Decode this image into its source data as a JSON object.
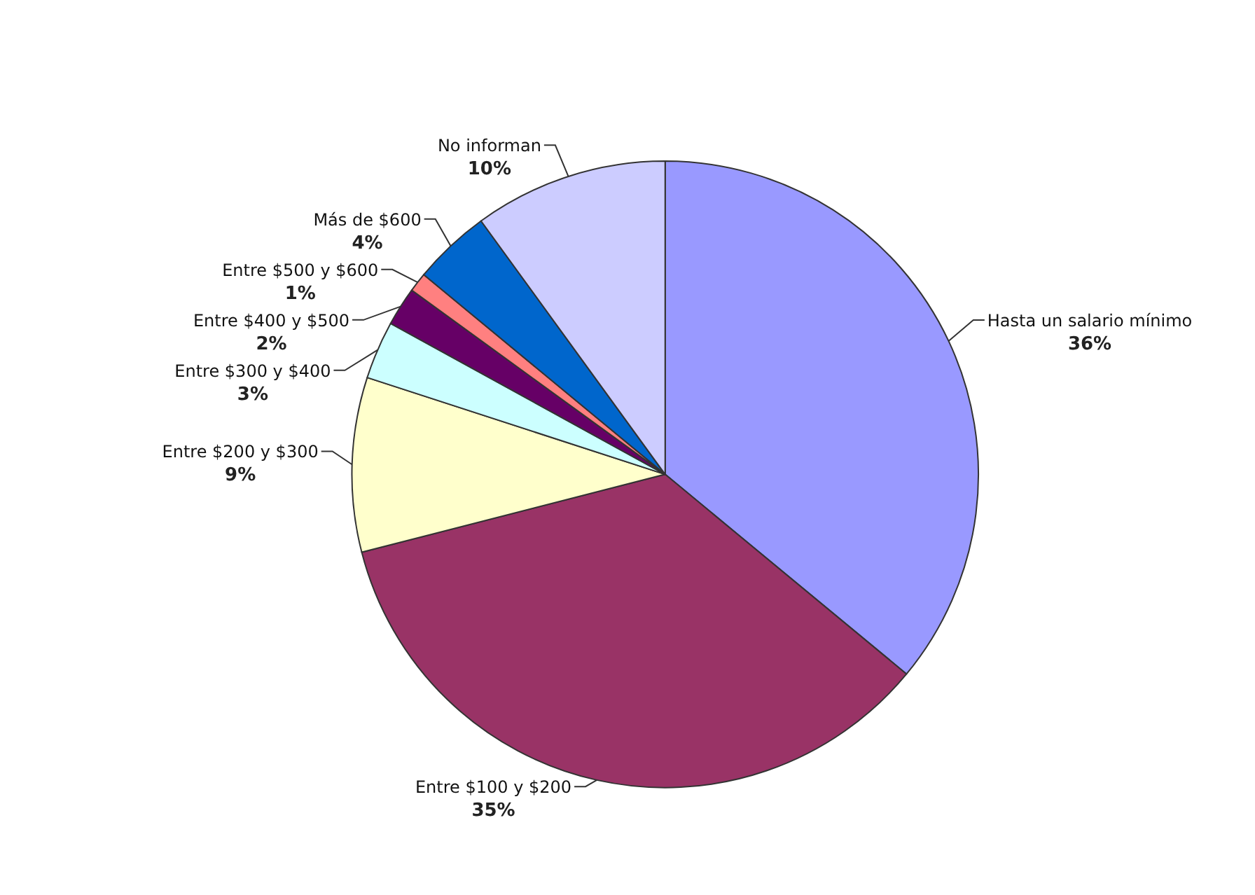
{
  "chart_data": {
    "type": "pie",
    "categories": [
      "Hasta un salario mínimo",
      "Entre $100 y $200",
      "Entre $200 y $300",
      "Entre $300 y $400",
      "Entre $400 y $500",
      "Entre $500 y $600",
      "Más de $600",
      "No informan"
    ],
    "values": [
      36,
      35,
      9,
      3,
      2,
      1,
      4,
      10
    ],
    "value_labels": [
      "36%",
      "35%",
      "9%",
      "3%",
      "2%",
      "1%",
      "4%",
      "10%"
    ],
    "colors": [
      "#9999ff",
      "#993366",
      "#ffffcc",
      "#ccffff",
      "#660066",
      "#ff8080",
      "#0066cc",
      "#ccccff"
    ],
    "legend": false
  }
}
